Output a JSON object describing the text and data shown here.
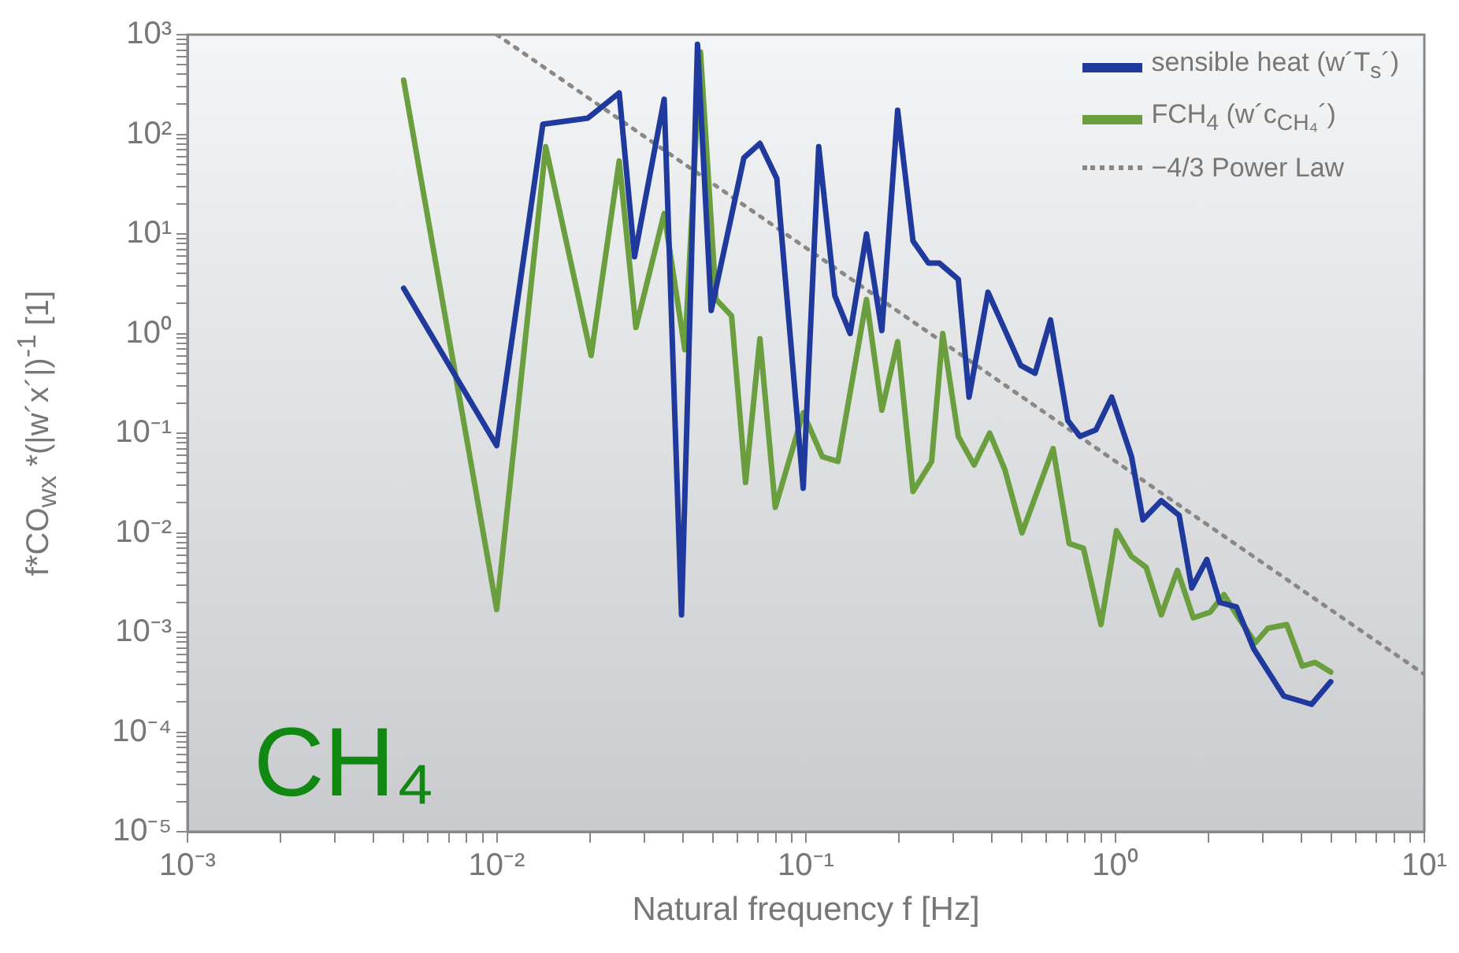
{
  "chart_data": {
    "type": "line",
    "xlabel": "Natural frequency f [Hz]",
    "ylabel": "f*CO$_{wx}$ *(|w´x´|)$^{-1}$ [1]",
    "log": "xy",
    "legend": "top right",
    "marker": "none",
    "xlim": [
      0.001,
      10
    ],
    "ylim": [
      1e-05,
      1000
    ],
    "xticks": [
      {
        "value": 0.001,
        "label": "10⁻³"
      },
      {
        "value": 0.002,
        "label": null
      },
      {
        "value": 0.003,
        "label": null
      },
      {
        "value": 0.004,
        "label": null
      },
      {
        "value": 0.005,
        "label": null
      },
      {
        "value": 0.006,
        "label": null
      },
      {
        "value": 0.007,
        "label": null
      },
      {
        "value": 0.008,
        "label": null
      },
      {
        "value": 0.009,
        "label": null
      },
      {
        "value": 0.01,
        "label": "10⁻²"
      },
      {
        "value": 0.02,
        "label": null
      },
      {
        "value": 0.03,
        "label": null
      },
      {
        "value": 0.04,
        "label": null
      },
      {
        "value": 0.05,
        "label": null
      },
      {
        "value": 0.06,
        "label": null
      },
      {
        "value": 0.07,
        "label": null
      },
      {
        "value": 0.08,
        "label": null
      },
      {
        "value": 0.09,
        "label": null
      },
      {
        "value": 0.1,
        "label": "10⁻¹"
      },
      {
        "value": 0.2,
        "label": null
      },
      {
        "value": 0.3,
        "label": null
      },
      {
        "value": 0.4,
        "label": null
      },
      {
        "value": 0.5,
        "label": null
      },
      {
        "value": 0.6,
        "label": null
      },
      {
        "value": 0.7,
        "label": null
      },
      {
        "value": 0.8,
        "label": null
      },
      {
        "value": 0.9,
        "label": null
      },
      {
        "value": 1,
        "label": "10⁰"
      },
      {
        "value": 2,
        "label": null
      },
      {
        "value": 3,
        "label": null
      },
      {
        "value": 4,
        "label": null
      },
      {
        "value": 5,
        "label": null
      },
      {
        "value": 6,
        "label": null
      },
      {
        "value": 7,
        "label": null
      },
      {
        "value": 8,
        "label": null
      },
      {
        "value": 9,
        "label": null
      },
      {
        "value": 10,
        "label": "10¹"
      }
    ],
    "yticks": [
      {
        "value": 1e-05,
        "label": "10⁻⁵"
      },
      {
        "value": 2e-05,
        "label": null
      },
      {
        "value": 3e-05,
        "label": null
      },
      {
        "value": 4e-05,
        "label": null
      },
      {
        "value": 5e-05,
        "label": null
      },
      {
        "value": 6e-05,
        "label": null
      },
      {
        "value": 7e-05,
        "label": null
      },
      {
        "value": 8e-05,
        "label": null
      },
      {
        "value": 9e-05,
        "label": null
      },
      {
        "value": 0.0001,
        "label": "10⁻⁴"
      },
      {
        "value": 0.0002,
        "label": null
      },
      {
        "value": 0.0003,
        "label": null
      },
      {
        "value": 0.0004,
        "label": null
      },
      {
        "value": 0.0005,
        "label": null
      },
      {
        "value": 0.0006,
        "label": null
      },
      {
        "value": 0.0007,
        "label": null
      },
      {
        "value": 0.0008,
        "label": null
      },
      {
        "value": 0.0009,
        "label": null
      },
      {
        "value": 0.001,
        "label": "10⁻³"
      },
      {
        "value": 0.002,
        "label": null
      },
      {
        "value": 0.003,
        "label": null
      },
      {
        "value": 0.004,
        "label": null
      },
      {
        "value": 0.005,
        "label": null
      },
      {
        "value": 0.006,
        "label": null
      },
      {
        "value": 0.007,
        "label": null
      },
      {
        "value": 0.008,
        "label": null
      },
      {
        "value": 0.009,
        "label": null
      },
      {
        "value": 0.01,
        "label": "10⁻²"
      },
      {
        "value": 0.02,
        "label": null
      },
      {
        "value": 0.03,
        "label": null
      },
      {
        "value": 0.04,
        "label": null
      },
      {
        "value": 0.05,
        "label": null
      },
      {
        "value": 0.06,
        "label": null
      },
      {
        "value": 0.07,
        "label": null
      },
      {
        "value": 0.08,
        "label": null
      },
      {
        "value": 0.09,
        "label": null
      },
      {
        "value": 0.1,
        "label": "10⁻¹"
      },
      {
        "value": 0.2,
        "label": null
      },
      {
        "value": 0.3,
        "label": null
      },
      {
        "value": 0.4,
        "label": null
      },
      {
        "value": 0.5,
        "label": null
      },
      {
        "value": 0.6,
        "label": null
      },
      {
        "value": 0.7,
        "label": null
      },
      {
        "value": 0.8,
        "label": null
      },
      {
        "value": 0.9,
        "label": null
      },
      {
        "value": 1,
        "label": "10⁰"
      },
      {
        "value": 2,
        "label": null
      },
      {
        "value": 3,
        "label": null
      },
      {
        "value": 4,
        "label": null
      },
      {
        "value": 5,
        "label": null
      },
      {
        "value": 6,
        "label": null
      },
      {
        "value": 7,
        "label": null
      },
      {
        "value": 8,
        "label": null
      },
      {
        "value": 9,
        "label": null
      },
      {
        "value": 10,
        "label": "10¹"
      },
      {
        "value": 20,
        "label": null
      },
      {
        "value": 30,
        "label": null
      },
      {
        "value": 40,
        "label": null
      },
      {
        "value": 50,
        "label": null
      },
      {
        "value": 60,
        "label": null
      },
      {
        "value": 70,
        "label": null
      },
      {
        "value": 80,
        "label": null
      },
      {
        "value": 90,
        "label": null
      },
      {
        "value": 100,
        "label": "10²"
      },
      {
        "value": 200,
        "label": null
      },
      {
        "value": 300,
        "label": null
      },
      {
        "value": 400,
        "label": null
      },
      {
        "value": 500,
        "label": null
      },
      {
        "value": 600,
        "label": null
      },
      {
        "value": 700,
        "label": null
      },
      {
        "value": 800,
        "label": null
      },
      {
        "value": 900,
        "label": null
      },
      {
        "value": 1000,
        "label": "10³"
      }
    ],
    "series": [
      {
        "name": "sensible heat (w´T$_{s}$´)",
        "color": "#1f3a9c",
        "x": [
          0.005,
          0.01,
          0.0141,
          0.0197,
          0.0249,
          0.0279,
          0.0348,
          0.0396,
          0.0446,
          0.0494,
          0.063,
          0.071,
          0.0805,
          0.098,
          0.11,
          0.124,
          0.139,
          0.157,
          0.176,
          0.198,
          0.222,
          0.249,
          0.27,
          0.311,
          0.337,
          0.388,
          0.495,
          0.551,
          0.618,
          0.703,
          0.77,
          0.867,
          0.975,
          1.13,
          1.23,
          1.41,
          1.61,
          1.77,
          1.98,
          2.18,
          2.47,
          2.81,
          3.51,
          4.32,
          4.98
        ],
        "values": [
          2.85,
          0.075,
          126,
          145,
          260,
          5.9,
          225,
          0.0015,
          800,
          1.7,
          58,
          81,
          36,
          0.028,
          75,
          2.4,
          1.0,
          10,
          1.07,
          174,
          8.5,
          5.1,
          5.1,
          3.5,
          0.23,
          2.6,
          0.48,
          0.4,
          1.37,
          0.134,
          0.093,
          0.108,
          0.23,
          0.058,
          0.0135,
          0.021,
          0.015,
          0.0028,
          0.0054,
          0.002,
          0.0018,
          0.00068,
          0.00023,
          0.00019,
          0.00032
        ]
      },
      {
        "name": "FCH$_{4}$ (w´c$_{CH₄}$´)",
        "color": "#6a9e3f",
        "x": [
          0.005,
          0.01,
          0.0144,
          0.0202,
          0.0249,
          0.0282,
          0.0348,
          0.0406,
          0.0456,
          0.0512,
          0.0575,
          0.0638,
          0.071,
          0.0796,
          0.098,
          0.113,
          0.127,
          0.157,
          0.176,
          0.198,
          0.222,
          0.255,
          0.277,
          0.311,
          0.35,
          0.393,
          0.44,
          0.5,
          0.63,
          0.71,
          0.79,
          0.9,
          1.01,
          1.13,
          1.26,
          1.41,
          1.59,
          1.79,
          2.03,
          2.25,
          2.47,
          2.84,
          3.12,
          3.59,
          4.03,
          4.43,
          4.98
        ],
        "values": [
          350,
          0.0017,
          75,
          0.6,
          54,
          1.15,
          16,
          0.69,
          670,
          2.2,
          1.5,
          0.032,
          0.89,
          0.018,
          0.16,
          0.058,
          0.052,
          2.2,
          0.17,
          0.83,
          0.026,
          0.052,
          1.0,
          0.093,
          0.048,
          0.1,
          0.043,
          0.01,
          0.07,
          0.0078,
          0.007,
          0.0012,
          0.0105,
          0.0058,
          0.0045,
          0.0015,
          0.0042,
          0.0014,
          0.0016,
          0.0024,
          0.0015,
          0.00079,
          0.0011,
          0.0012,
          0.00046,
          0.0005,
          0.0004
        ]
      },
      {
        "name": "−4/3 Power Law",
        "color": "#888888",
        "line_style": "dotted",
        "x": [
          0.01,
          10
        ],
        "values": [
          1000,
          0.00038
        ]
      }
    ],
    "annotations": [
      "CH₄"
    ]
  }
}
